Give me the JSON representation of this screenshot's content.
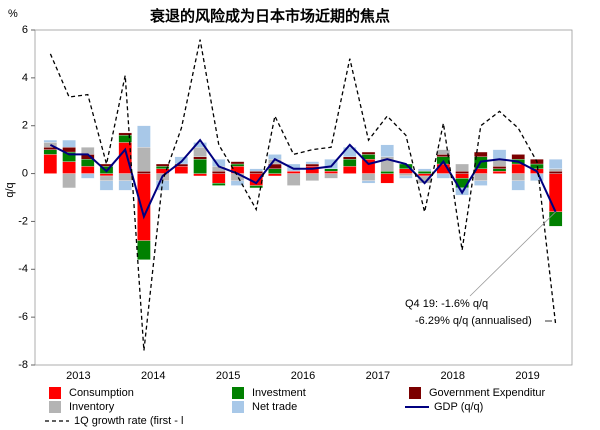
{
  "chart_data": {
    "type": "bar",
    "title": "衰退的风险成为日本市场近期的焦点",
    "y_unit": "%",
    "ylabel": "q/q",
    "x": [
      2013.125,
      2013.375,
      2013.625,
      2013.875,
      2014.125,
      2014.375,
      2014.625,
      2014.875,
      2015.125,
      2015.375,
      2015.625,
      2015.875,
      2016.125,
      2016.375,
      2016.625,
      2016.875,
      2017.125,
      2017.375,
      2017.625,
      2017.875,
      2018.125,
      2018.375,
      2018.625,
      2018.875,
      2019.125,
      2019.375,
      2019.625,
      2019.875
    ],
    "xlim": [
      2013,
      2020
    ],
    "xticks": [
      {
        "value": 2013.5,
        "label": "2013"
      },
      {
        "value": 2014.5,
        "label": "2014"
      },
      {
        "value": 2015.5,
        "label": "2015"
      },
      {
        "value": 2016.5,
        "label": "2016"
      },
      {
        "value": 2017.5,
        "label": "2017"
      },
      {
        "value": 2018.5,
        "label": "2018"
      },
      {
        "value": 2019.5,
        "label": "2019"
      }
    ],
    "ylim": [
      -8,
      6
    ],
    "yticks": [
      -8,
      -6,
      -4,
      -2,
      0,
      2,
      4,
      6
    ],
    "grid": false,
    "series": [
      {
        "name": "Consumption",
        "type": "bar",
        "color": "#ff0000",
        "values": [
          0.8,
          0.5,
          0.3,
          -0.1,
          1.3,
          -2.8,
          0.2,
          0.3,
          -0.1,
          -0.4,
          0.3,
          -0.5,
          -0.1,
          0.1,
          0.3,
          0.1,
          0.3,
          0.6,
          -0.4,
          0.2,
          -0.1,
          0.4,
          -0.2,
          0.2,
          0.1,
          0.4,
          0.2,
          -1.6
        ]
      },
      {
        "name": "Investment",
        "type": "bar",
        "color": "#008000",
        "values": [
          0.2,
          0.4,
          0.3,
          0.3,
          0.3,
          -0.8,
          0.1,
          0.0,
          0.6,
          -0.1,
          0.1,
          -0.1,
          0.2,
          0.0,
          0.0,
          0.1,
          0.3,
          0.2,
          0.1,
          0.2,
          0.1,
          0.3,
          -0.4,
          0.5,
          0.1,
          0.2,
          0.2,
          -0.6
        ]
      },
      {
        "name": "Government Expenditur",
        "type": "bar",
        "color": "#7b0000",
        "values": [
          0.1,
          0.2,
          0.2,
          0.1,
          0.1,
          0.1,
          0.1,
          0.1,
          0.1,
          0.1,
          0.1,
          0.1,
          0.2,
          0.0,
          0.1,
          0.0,
          0.1,
          0.1,
          0.0,
          0.0,
          0.0,
          0.1,
          0.1,
          0.2,
          0.1,
          0.2,
          0.2,
          0.1
        ]
      },
      {
        "name": "Inventory",
        "type": "bar",
        "color": "#b4b4b4",
        "values": [
          0.2,
          -0.6,
          0.3,
          -0.2,
          -0.3,
          1.0,
          -0.3,
          0.0,
          0.4,
          0.2,
          -0.3,
          0.0,
          0.2,
          -0.5,
          -0.3,
          -0.2,
          0.0,
          -0.3,
          0.6,
          -0.1,
          -0.3,
          0.2,
          0.3,
          -0.3,
          0.3,
          -0.3,
          0.0,
          0.1
        ]
      },
      {
        "name": "Net trade",
        "type": "bar",
        "color": "#a8c8e8",
        "values": [
          0.1,
          0.3,
          -0.2,
          -0.4,
          -0.4,
          0.9,
          -0.4,
          0.3,
          0.2,
          0.3,
          -0.2,
          0.1,
          0.2,
          0.3,
          0.1,
          0.4,
          0.4,
          -0.1,
          0.5,
          -0.1,
          0.1,
          -0.2,
          -0.3,
          -0.2,
          0.4,
          -0.4,
          -0.3,
          0.4
        ]
      },
      {
        "name": "GDP (q/q)",
        "type": "line",
        "color": "#000080",
        "values": [
          1.2,
          0.8,
          0.8,
          0.1,
          1.0,
          -1.8,
          -0.1,
          0.5,
          1.4,
          0.3,
          0.0,
          -0.4,
          0.6,
          0.2,
          0.2,
          0.3,
          1.2,
          0.4,
          0.6,
          0.4,
          -0.4,
          0.5,
          -0.8,
          0.5,
          0.6,
          0.5,
          0.1,
          -1.6
        ]
      },
      {
        "name": "1Q growth rate (first - l",
        "type": "line",
        "dash": true,
        "color": "#000000",
        "values": [
          5.0,
          3.2,
          3.3,
          0.4,
          4.1,
          -7.4,
          -0.3,
          1.9,
          5.6,
          1.2,
          -0.1,
          -1.5,
          2.4,
          0.8,
          1.0,
          1.1,
          4.8,
          1.4,
          2.4,
          1.6,
          -1.6,
          2.1,
          -3.2,
          2.0,
          2.6,
          1.9,
          0.5,
          -6.29
        ]
      }
    ],
    "annotations": [
      "Q4 19: -1.6% q/q",
      "-6.29% q/q (annualised)"
    ]
  }
}
